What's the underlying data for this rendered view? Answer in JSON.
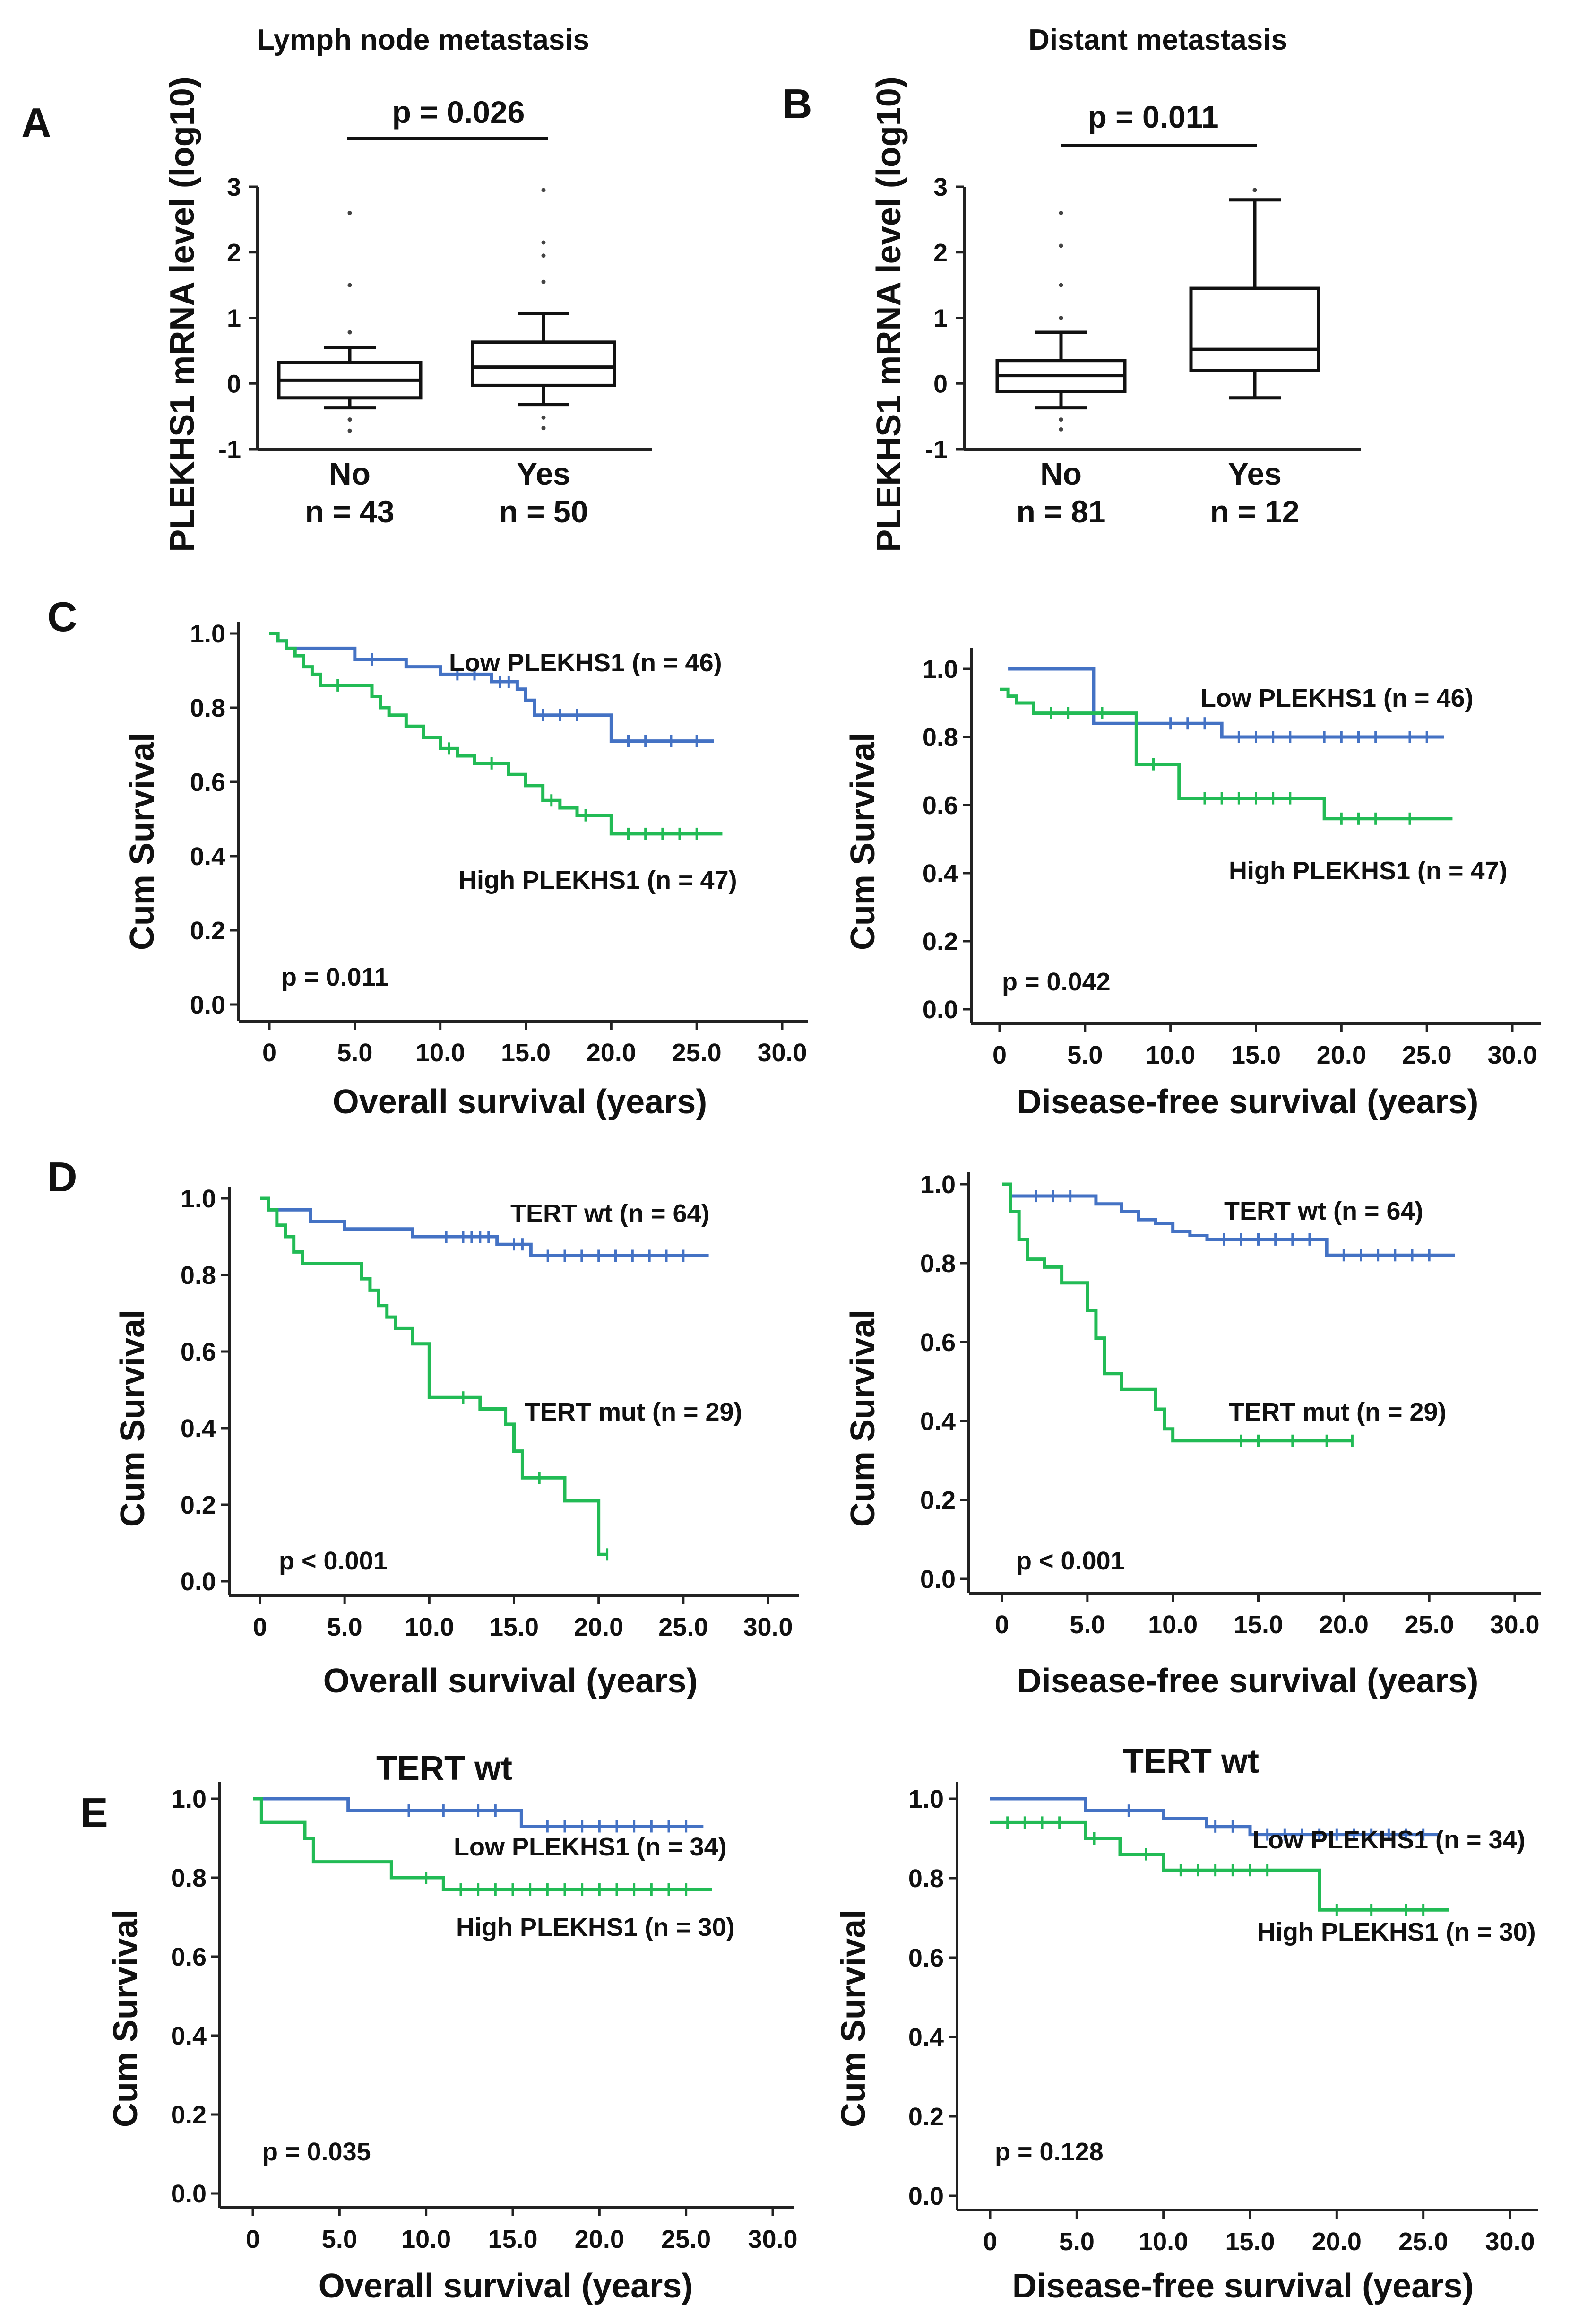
{
  "colors": {
    "low": "#4472C4",
    "high": "#22BB55",
    "ink": "#111111"
  },
  "panel_labels": [
    "A",
    "B",
    "C",
    "D",
    "E"
  ],
  "chart_data": [
    {
      "id": "A",
      "type": "box",
      "title": "Lymph node metastasis",
      "ylabel": "PLEKHS1 mRNA level (log10)",
      "ylim": [
        -1,
        3
      ],
      "yticks": [
        "-1",
        "0",
        "1",
        "2",
        "3"
      ],
      "p_value": "p = 0.026",
      "groups": [
        {
          "name": "No",
          "n_label": "n = 43",
          "whisker_low": -0.37,
          "q1": -0.22,
          "median": 0.05,
          "q3": 0.32,
          "whisker_high": 0.55,
          "outliers": [
            2.6,
            1.5,
            0.78,
            -0.55,
            -0.72
          ]
        },
        {
          "name": "Yes",
          "n_label": "n = 50",
          "whisker_low": -0.32,
          "q1": -0.03,
          "median": 0.25,
          "q3": 0.63,
          "whisker_high": 1.07,
          "outliers": [
            2.95,
            2.15,
            1.95,
            1.55,
            -0.52,
            -0.68
          ]
        }
      ]
    },
    {
      "id": "B",
      "type": "box",
      "title": "Distant metastasis",
      "ylabel": "PLEKHS1 mRNA level (log10)",
      "ylim": [
        -1,
        3
      ],
      "yticks": [
        "-1",
        "0",
        "1",
        "2",
        "3"
      ],
      "p_value": "p = 0.011",
      "groups": [
        {
          "name": "No",
          "n_label": "n = 81",
          "whisker_low": -0.37,
          "q1": -0.12,
          "median": 0.12,
          "q3": 0.35,
          "whisker_high": 0.78,
          "outliers": [
            2.6,
            2.1,
            1.5,
            1.0,
            -0.55,
            -0.7
          ]
        },
        {
          "name": "Yes",
          "n_label": "n = 12",
          "whisker_low": -0.22,
          "q1": 0.2,
          "median": 0.52,
          "q3": 1.45,
          "whisker_high": 2.8,
          "outliers": [
            2.95
          ]
        }
      ]
    },
    {
      "id": "C-left",
      "type": "line",
      "xlabel": "Overall survival (years)",
      "ylabel": "Cum Survival",
      "xlim": [
        0,
        30
      ],
      "ylim": [
        0,
        1
      ],
      "xticks": [
        "0",
        "5.0",
        "10.0",
        "15.0",
        "20.0",
        "25.0",
        "30.0"
      ],
      "yticks": [
        "0.0",
        "0.2",
        "0.4",
        "0.6",
        "0.8",
        "1.0"
      ],
      "p_value": "p = 0.011",
      "series": [
        {
          "name": "Low PLEKHS1 (n = 46)",
          "color_key": "low",
          "x": [
            0,
            0.5,
            1,
            5,
            8,
            10,
            13,
            14.5,
            15,
            15.5,
            20,
            26
          ],
          "y": [
            1,
            0.98,
            0.96,
            0.93,
            0.91,
            0.89,
            0.87,
            0.85,
            0.82,
            0.78,
            0.71,
            0.71
          ],
          "censor_x": [
            6,
            11,
            12,
            13.5,
            14,
            16,
            17,
            18,
            21,
            22,
            23.5,
            25
          ]
        },
        {
          "name": "High PLEKHS1 (n = 47)",
          "color_key": "high",
          "x": [
            0,
            0.5,
            1,
            1.5,
            2,
            2.5,
            3,
            6,
            6.5,
            7,
            8,
            9,
            10,
            11,
            12,
            14,
            15,
            16,
            17,
            18,
            20,
            26.5
          ],
          "y": [
            1,
            0.98,
            0.96,
            0.94,
            0.91,
            0.89,
            0.86,
            0.83,
            0.8,
            0.78,
            0.75,
            0.72,
            0.69,
            0.67,
            0.65,
            0.62,
            0.59,
            0.55,
            0.53,
            0.51,
            0.46,
            0.46
          ],
          "censor_x": [
            4,
            10.5,
            13,
            16.5,
            18.5,
            21,
            22,
            23,
            24,
            25
          ]
        }
      ]
    },
    {
      "id": "C-right",
      "type": "line",
      "xlabel": "Disease-free survival (years)",
      "ylabel": "Cum Survival",
      "xlim": [
        0,
        30
      ],
      "ylim": [
        0,
        1
      ],
      "xticks": [
        "0",
        "5.0",
        "10.0",
        "15.0",
        "20.0",
        "25.0",
        "30.0"
      ],
      "yticks": [
        "0.0",
        "0.2",
        "0.4",
        "0.6",
        "0.8",
        "1.0"
      ],
      "p_value": "p = 0.042",
      "series": [
        {
          "name": "Low PLEKHS1 (n = 46)",
          "color_key": "low",
          "x": [
            0.5,
            5.5,
            13,
            26
          ],
          "y": [
            1,
            0.84,
            0.8,
            0.8
          ],
          "censor_x": [
            8,
            10,
            11,
            12,
            14,
            15,
            16,
            17,
            19,
            20,
            21,
            22,
            24,
            25
          ]
        },
        {
          "name": "High PLEKHS1 (n = 47)",
          "color_key": "high",
          "x": [
            0,
            0.5,
            1,
            2,
            8,
            10.5,
            19,
            26.5
          ],
          "y": [
            0.94,
            0.92,
            0.9,
            0.87,
            0.72,
            0.62,
            0.56,
            0.56
          ],
          "censor_x": [
            3,
            4,
            6,
            9,
            12,
            13,
            14,
            15,
            16,
            17,
            20,
            21,
            22,
            24
          ]
        }
      ]
    },
    {
      "id": "D-left",
      "type": "line",
      "xlabel": "Overall survival (years)",
      "ylabel": "Cum Survival",
      "xlim": [
        0,
        30
      ],
      "ylim": [
        0,
        1
      ],
      "xticks": [
        "0",
        "5.0",
        "10.0",
        "15.0",
        "20.0",
        "25.0",
        "30.0"
      ],
      "yticks": [
        "0.0",
        "0.2",
        "0.4",
        "0.6",
        "0.8",
        "1.0"
      ],
      "p_value": "p < 0.001",
      "series": [
        {
          "name": "TERT wt (n = 64)",
          "color_key": "low",
          "x": [
            0,
            0.5,
            3,
            5,
            9,
            14,
            16,
            26.5
          ],
          "y": [
            1,
            0.97,
            0.94,
            0.92,
            0.9,
            0.88,
            0.85,
            0.85
          ],
          "censor_x": [
            11,
            12,
            12.5,
            13,
            13.5,
            15,
            15.5,
            17,
            18,
            19,
            20,
            21,
            22,
            23,
            24,
            25
          ]
        },
        {
          "name": "TERT mut (n = 29)",
          "color_key": "high",
          "x": [
            0,
            0.5,
            1,
            1.5,
            2,
            2.5,
            6,
            6.5,
            7,
            7.5,
            8,
            9,
            10,
            13,
            14.5,
            15,
            15.5,
            18,
            20,
            20.5
          ],
          "y": [
            1,
            0.97,
            0.93,
            0.9,
            0.86,
            0.83,
            0.79,
            0.76,
            0.72,
            0.69,
            0.66,
            0.62,
            0.48,
            0.45,
            0.41,
            0.34,
            0.27,
            0.21,
            0.07,
            0.07
          ],
          "censor_x": [
            12,
            16.5,
            20.5
          ]
        }
      ]
    },
    {
      "id": "D-right",
      "type": "line",
      "xlabel": "Disease-free survival (years)",
      "ylabel": "Cum Survival",
      "xlim": [
        0,
        30
      ],
      "ylim": [
        0,
        1
      ],
      "xticks": [
        "0",
        "5.0",
        "10.0",
        "15.0",
        "20.0",
        "25.0",
        "30.0"
      ],
      "yticks": [
        "0.0",
        "0.2",
        "0.4",
        "0.6",
        "0.8",
        "1.0"
      ],
      "p_value": "p < 0.001",
      "series": [
        {
          "name": "TERT wt (n = 64)",
          "color_key": "low",
          "x": [
            0,
            0.5,
            5.5,
            7,
            8,
            9,
            10,
            11,
            12,
            19,
            26.5
          ],
          "y": [
            1,
            0.97,
            0.95,
            0.93,
            0.91,
            0.9,
            0.88,
            0.87,
            0.86,
            0.82,
            0.82
          ],
          "censor_x": [
            2,
            3,
            4,
            13,
            14,
            15,
            16,
            17,
            18,
            20,
            21,
            22,
            23,
            24,
            25
          ]
        },
        {
          "name": "TERT mut (n = 29)",
          "color_key": "high",
          "x": [
            0,
            0.5,
            1,
            1.5,
            2.5,
            3.5,
            5,
            5.5,
            6,
            7,
            9,
            9.5,
            10,
            20.5
          ],
          "y": [
            1,
            0.93,
            0.86,
            0.81,
            0.79,
            0.75,
            0.68,
            0.61,
            0.52,
            0.48,
            0.43,
            0.38,
            0.35,
            0.35
          ],
          "censor_x": [
            14,
            15,
            17,
            19,
            20.5
          ]
        }
      ]
    },
    {
      "id": "E-left",
      "type": "line",
      "subtitle": "TERT wt",
      "xlabel": "Overall survival (years)",
      "ylabel": "Cum Survival",
      "xlim": [
        0,
        30
      ],
      "ylim": [
        0,
        1
      ],
      "xticks": [
        "0",
        "5.0",
        "10.0",
        "15.0",
        "20.0",
        "25.0",
        "30.0"
      ],
      "yticks": [
        "0.0",
        "0.2",
        "0.4",
        "0.6",
        "0.8",
        "1.0"
      ],
      "p_value": "p = 0.035",
      "series": [
        {
          "name": "Low PLEKHS1 (n = 34)",
          "color_key": "low",
          "x": [
            0,
            5.5,
            15.5,
            26
          ],
          "y": [
            1,
            0.97,
            0.93,
            0.93
          ],
          "censor_x": [
            9,
            11,
            13,
            14,
            17,
            18,
            19,
            20,
            21,
            22,
            23,
            24,
            25
          ]
        },
        {
          "name": "High PLEKHS1 (n = 30)",
          "color_key": "high",
          "x": [
            0,
            0.5,
            3,
            3.5,
            8,
            11,
            26.5
          ],
          "y": [
            1,
            0.94,
            0.9,
            0.84,
            0.8,
            0.77,
            0.77
          ],
          "censor_x": [
            10,
            12,
            13,
            14,
            15,
            16,
            17,
            18,
            19,
            20,
            21,
            22,
            23,
            24,
            25
          ]
        }
      ]
    },
    {
      "id": "E-right",
      "type": "line",
      "subtitle": "TERT wt",
      "xlabel": "Disease-free survival (years)",
      "ylabel": "Cum Survival",
      "xlim": [
        0,
        30
      ],
      "ylim": [
        0,
        1
      ],
      "xticks": [
        "0",
        "5.0",
        "10.0",
        "15.0",
        "20.0",
        "25.0",
        "30.0"
      ],
      "yticks": [
        "0.0",
        "0.2",
        "0.4",
        "0.6",
        "0.8",
        "1.0"
      ],
      "p_value": "p = 0.128",
      "series": [
        {
          "name": "Low PLEKHS1 (n = 34)",
          "color_key": "low",
          "x": [
            0,
            5.5,
            10,
            12.5,
            15,
            26
          ],
          "y": [
            1,
            0.97,
            0.95,
            0.93,
            0.91,
            0.91
          ],
          "censor_x": [
            8,
            13,
            14,
            16,
            17,
            18,
            19,
            20,
            21,
            22,
            23,
            24,
            25
          ]
        },
        {
          "name": "High PLEKHS1 (n = 30)",
          "color_key": "high",
          "x": [
            0,
            5.5,
            7.5,
            10,
            19,
            26.5
          ],
          "y": [
            0.94,
            0.9,
            0.86,
            0.82,
            0.72,
            0.72
          ],
          "censor_x": [
            1,
            2,
            3,
            4,
            6,
            9,
            11,
            12,
            13,
            14,
            15,
            16,
            20,
            22,
            24,
            25
          ]
        }
      ]
    }
  ]
}
